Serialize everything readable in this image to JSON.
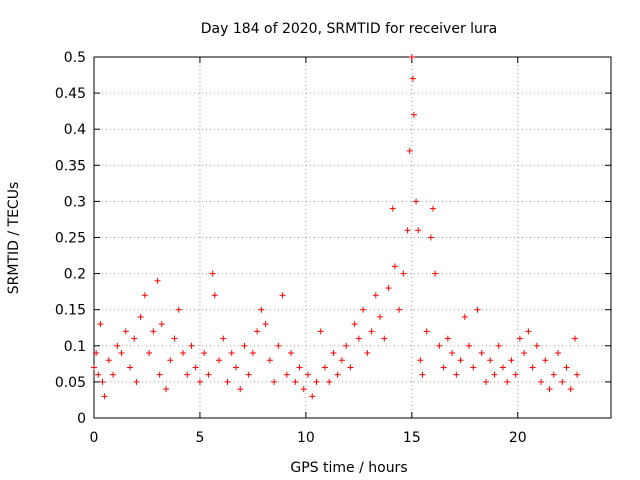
{
  "chart_data": {
    "type": "scatter",
    "title": "Day 184 of 2020, SRMTID for receiver lura",
    "xlabel": "GPS time / hours",
    "ylabel": "SRMTID / TECUs",
    "xlim": [
      0,
      24.4
    ],
    "ylim": [
      0,
      0.5
    ],
    "xticks": [
      0,
      5,
      10,
      15,
      20
    ],
    "xtick_labels": [
      "0",
      "5",
      "10",
      "15",
      "20"
    ],
    "yticks": [
      0,
      0.05,
      0.1,
      0.15,
      0.2,
      0.25,
      0.3,
      0.35,
      0.4,
      0.45,
      0.5
    ],
    "ytick_labels": [
      "0",
      "0.05",
      "0.1",
      "0.15",
      "0.2",
      "0.25",
      "0.3",
      "0.35",
      "0.4",
      "0.45",
      "0.5"
    ],
    "grid": true,
    "marker": "+",
    "color": "#ff0000",
    "series": [
      {
        "name": "SRMTID",
        "points": [
          [
            0.0,
            0.07
          ],
          [
            0.1,
            0.09
          ],
          [
            0.2,
            0.06
          ],
          [
            0.3,
            0.13
          ],
          [
            0.4,
            0.05
          ],
          [
            0.5,
            0.03
          ],
          [
            0.7,
            0.08
          ],
          [
            0.9,
            0.06
          ],
          [
            1.1,
            0.1
          ],
          [
            1.3,
            0.09
          ],
          [
            1.5,
            0.12
          ],
          [
            1.7,
            0.07
          ],
          [
            1.9,
            0.11
          ],
          [
            2.0,
            0.05
          ],
          [
            2.2,
            0.14
          ],
          [
            2.4,
            0.17
          ],
          [
            2.6,
            0.09
          ],
          [
            2.8,
            0.12
          ],
          [
            3.0,
            0.19
          ],
          [
            3.1,
            0.06
          ],
          [
            3.2,
            0.13
          ],
          [
            3.4,
            0.04
          ],
          [
            3.6,
            0.08
          ],
          [
            3.8,
            0.11
          ],
          [
            4.0,
            0.15
          ],
          [
            4.2,
            0.09
          ],
          [
            4.4,
            0.06
          ],
          [
            4.6,
            0.1
          ],
          [
            4.8,
            0.07
          ],
          [
            5.0,
            0.05
          ],
          [
            5.2,
            0.09
          ],
          [
            5.4,
            0.06
          ],
          [
            5.6,
            0.2
          ],
          [
            5.7,
            0.17
          ],
          [
            5.9,
            0.08
          ],
          [
            6.1,
            0.11
          ],
          [
            6.3,
            0.05
          ],
          [
            6.5,
            0.09
          ],
          [
            6.7,
            0.07
          ],
          [
            6.9,
            0.04
          ],
          [
            7.1,
            0.1
          ],
          [
            7.3,
            0.06
          ],
          [
            7.5,
            0.09
          ],
          [
            7.7,
            0.12
          ],
          [
            7.9,
            0.15
          ],
          [
            8.1,
            0.13
          ],
          [
            8.3,
            0.08
          ],
          [
            8.5,
            0.05
          ],
          [
            8.7,
            0.1
          ],
          [
            8.9,
            0.17
          ],
          [
            9.1,
            0.06
          ],
          [
            9.3,
            0.09
          ],
          [
            9.5,
            0.05
          ],
          [
            9.7,
            0.07
          ],
          [
            9.9,
            0.04
          ],
          [
            10.1,
            0.06
          ],
          [
            10.3,
            0.03
          ],
          [
            10.5,
            0.05
          ],
          [
            10.7,
            0.12
          ],
          [
            10.9,
            0.07
          ],
          [
            11.1,
            0.05
          ],
          [
            11.3,
            0.09
          ],
          [
            11.5,
            0.06
          ],
          [
            11.7,
            0.08
          ],
          [
            11.9,
            0.1
          ],
          [
            12.1,
            0.07
          ],
          [
            12.3,
            0.13
          ],
          [
            12.5,
            0.11
          ],
          [
            12.7,
            0.15
          ],
          [
            12.9,
            0.09
          ],
          [
            13.1,
            0.12
          ],
          [
            13.3,
            0.17
          ],
          [
            13.5,
            0.14
          ],
          [
            13.7,
            0.11
          ],
          [
            13.9,
            0.18
          ],
          [
            14.1,
            0.29
          ],
          [
            14.2,
            0.21
          ],
          [
            14.4,
            0.15
          ],
          [
            14.6,
            0.2
          ],
          [
            14.8,
            0.26
          ],
          [
            14.9,
            0.37
          ],
          [
            15.0,
            0.5
          ],
          [
            15.05,
            0.47
          ],
          [
            15.1,
            0.42
          ],
          [
            15.2,
            0.3
          ],
          [
            15.3,
            0.26
          ],
          [
            15.4,
            0.08
          ],
          [
            15.5,
            0.06
          ],
          [
            15.7,
            0.12
          ],
          [
            15.9,
            0.25
          ],
          [
            16.0,
            0.29
          ],
          [
            16.1,
            0.2
          ],
          [
            16.3,
            0.1
          ],
          [
            16.5,
            0.07
          ],
          [
            16.7,
            0.11
          ],
          [
            16.9,
            0.09
          ],
          [
            17.1,
            0.06
          ],
          [
            17.3,
            0.08
          ],
          [
            17.5,
            0.14
          ],
          [
            17.7,
            0.1
          ],
          [
            17.9,
            0.07
          ],
          [
            18.1,
            0.15
          ],
          [
            18.3,
            0.09
          ],
          [
            18.5,
            0.05
          ],
          [
            18.7,
            0.08
          ],
          [
            18.9,
            0.06
          ],
          [
            19.1,
            0.1
          ],
          [
            19.3,
            0.07
          ],
          [
            19.5,
            0.05
          ],
          [
            19.7,
            0.08
          ],
          [
            19.9,
            0.06
          ],
          [
            20.1,
            0.11
          ],
          [
            20.3,
            0.09
          ],
          [
            20.5,
            0.12
          ],
          [
            20.7,
            0.07
          ],
          [
            20.9,
            0.1
          ],
          [
            21.1,
            0.05
          ],
          [
            21.3,
            0.08
          ],
          [
            21.5,
            0.04
          ],
          [
            21.7,
            0.06
          ],
          [
            21.9,
            0.09
          ],
          [
            22.1,
            0.05
          ],
          [
            22.3,
            0.07
          ],
          [
            22.5,
            0.04
          ],
          [
            22.7,
            0.11
          ],
          [
            22.8,
            0.06
          ]
        ]
      }
    ]
  }
}
